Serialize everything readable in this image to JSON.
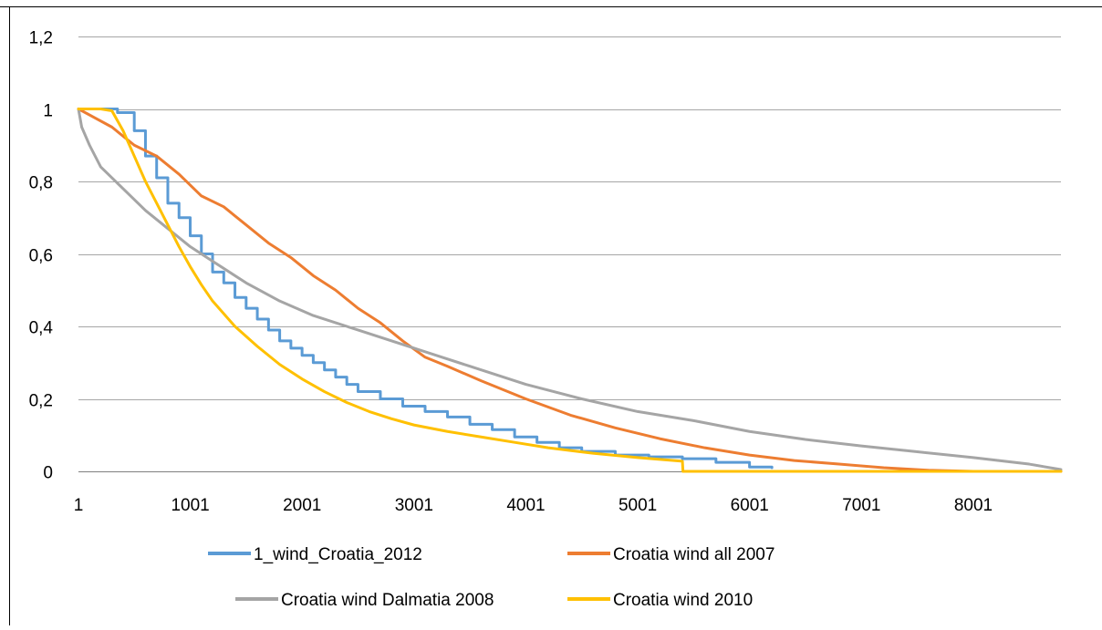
{
  "chart_data": {
    "type": "line",
    "title": "",
    "xlabel": "",
    "ylabel": "",
    "xlim": [
      1,
      8784
    ],
    "ylim": [
      0,
      1.2
    ],
    "x_ticks": [
      "1",
      "1001",
      "2001",
      "3001",
      "4001",
      "5001",
      "6001",
      "7001",
      "8001"
    ],
    "y_ticks": [
      "0",
      "0,2",
      "0,4",
      "0,6",
      "0,8",
      "1",
      "1,2"
    ],
    "grid": "horizontal",
    "legend_position": "bottom",
    "series": [
      {
        "name": "1_wind_Croatia_2012",
        "color": "#5B9BD5",
        "style": "stepped",
        "points": [
          [
            1,
            1.0
          ],
          [
            350,
            0.99
          ],
          [
            500,
            0.94
          ],
          [
            600,
            0.87
          ],
          [
            700,
            0.81
          ],
          [
            800,
            0.74
          ],
          [
            900,
            0.7
          ],
          [
            1000,
            0.65
          ],
          [
            1100,
            0.6
          ],
          [
            1200,
            0.55
          ],
          [
            1300,
            0.52
          ],
          [
            1400,
            0.48
          ],
          [
            1500,
            0.45
          ],
          [
            1600,
            0.42
          ],
          [
            1700,
            0.39
          ],
          [
            1800,
            0.36
          ],
          [
            1900,
            0.34
          ],
          [
            2000,
            0.32
          ],
          [
            2100,
            0.3
          ],
          [
            2200,
            0.28
          ],
          [
            2300,
            0.26
          ],
          [
            2400,
            0.24
          ],
          [
            2500,
            0.22
          ],
          [
            2700,
            0.2
          ],
          [
            2900,
            0.18
          ],
          [
            3100,
            0.165
          ],
          [
            3300,
            0.15
          ],
          [
            3500,
            0.13
          ],
          [
            3700,
            0.115
          ],
          [
            3900,
            0.095
          ],
          [
            4100,
            0.08
          ],
          [
            4300,
            0.065
          ],
          [
            4500,
            0.055
          ],
          [
            4800,
            0.045
          ],
          [
            5100,
            0.04
          ],
          [
            5400,
            0.035
          ],
          [
            5700,
            0.025
          ],
          [
            6000,
            0.012
          ],
          [
            6200,
            0.01
          ]
        ]
      },
      {
        "name": "Croatia wind all 2007",
        "color": "#ED7D31",
        "style": "smooth",
        "points": [
          [
            1,
            1.0
          ],
          [
            300,
            0.95
          ],
          [
            500,
            0.9
          ],
          [
            700,
            0.87
          ],
          [
            900,
            0.82
          ],
          [
            1100,
            0.76
          ],
          [
            1300,
            0.73
          ],
          [
            1500,
            0.68
          ],
          [
            1700,
            0.63
          ],
          [
            1900,
            0.59
          ],
          [
            2100,
            0.54
          ],
          [
            2300,
            0.5
          ],
          [
            2500,
            0.45
          ],
          [
            2700,
            0.41
          ],
          [
            2900,
            0.36
          ],
          [
            3100,
            0.315
          ],
          [
            3300,
            0.29
          ],
          [
            3600,
            0.25
          ],
          [
            4000,
            0.2
          ],
          [
            4400,
            0.155
          ],
          [
            4800,
            0.12
          ],
          [
            5200,
            0.09
          ],
          [
            5600,
            0.065
          ],
          [
            6000,
            0.045
          ],
          [
            6400,
            0.03
          ],
          [
            6800,
            0.02
          ],
          [
            7200,
            0.01
          ],
          [
            7600,
            0.003
          ],
          [
            8000,
            0.0
          ],
          [
            8784,
            0.0
          ]
        ]
      },
      {
        "name": "Croatia wind Dalmatia 2008",
        "color": "#A5A5A5",
        "style": "smooth",
        "points": [
          [
            1,
            1.0
          ],
          [
            30,
            0.95
          ],
          [
            100,
            0.9
          ],
          [
            200,
            0.84
          ],
          [
            400,
            0.78
          ],
          [
            600,
            0.72
          ],
          [
            800,
            0.67
          ],
          [
            1000,
            0.62
          ],
          [
            1200,
            0.58
          ],
          [
            1500,
            0.52
          ],
          [
            1800,
            0.47
          ],
          [
            2100,
            0.43
          ],
          [
            2500,
            0.39
          ],
          [
            3000,
            0.34
          ],
          [
            3500,
            0.29
          ],
          [
            4000,
            0.24
          ],
          [
            4500,
            0.2
          ],
          [
            5000,
            0.165
          ],
          [
            5500,
            0.14
          ],
          [
            6000,
            0.11
          ],
          [
            6500,
            0.088
          ],
          [
            7000,
            0.07
          ],
          [
            7500,
            0.054
          ],
          [
            8000,
            0.038
          ],
          [
            8500,
            0.02
          ],
          [
            8784,
            0.005
          ]
        ]
      },
      {
        "name": "Croatia wind 2010",
        "color": "#FFC000",
        "style": "smooth",
        "points": [
          [
            1,
            1.0
          ],
          [
            200,
            1.0
          ],
          [
            300,
            0.995
          ],
          [
            400,
            0.94
          ],
          [
            500,
            0.87
          ],
          [
            600,
            0.8
          ],
          [
            700,
            0.74
          ],
          [
            800,
            0.68
          ],
          [
            900,
            0.62
          ],
          [
            1000,
            0.565
          ],
          [
            1100,
            0.515
          ],
          [
            1200,
            0.47
          ],
          [
            1400,
            0.4
          ],
          [
            1600,
            0.345
          ],
          [
            1800,
            0.295
          ],
          [
            2000,
            0.255
          ],
          [
            2200,
            0.22
          ],
          [
            2400,
            0.19
          ],
          [
            2600,
            0.165
          ],
          [
            2800,
            0.145
          ],
          [
            3000,
            0.128
          ],
          [
            3300,
            0.11
          ],
          [
            3600,
            0.095
          ],
          [
            3900,
            0.08
          ],
          [
            4200,
            0.065
          ],
          [
            4600,
            0.05
          ],
          [
            5000,
            0.038
          ],
          [
            5400,
            0.028
          ],
          [
            5405,
            0.0
          ],
          [
            6000,
            0.0
          ],
          [
            8784,
            0.0
          ]
        ]
      }
    ]
  }
}
